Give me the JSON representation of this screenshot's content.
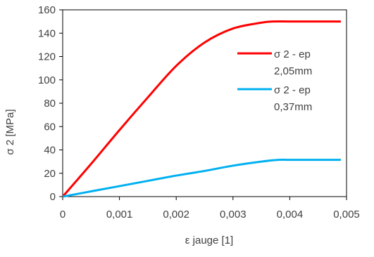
{
  "chart_data": {
    "type": "line",
    "title": "",
    "xlabel": "ε jauge [1]",
    "ylabel": "σ 2 [MPa]",
    "xlim": [
      0,
      0.005
    ],
    "ylim": [
      0,
      160
    ],
    "x_ticks": [
      0,
      0.001,
      0.002,
      0.003,
      0.004,
      0.005
    ],
    "x_tick_labels": [
      "0",
      "0,001",
      "0,002",
      "0,003",
      "0,004",
      "0,005"
    ],
    "y_ticks": [
      0,
      20,
      40,
      60,
      80,
      100,
      120,
      140,
      160
    ],
    "y_tick_labels": [
      "0",
      "20",
      "40",
      "60",
      "80",
      "100",
      "120",
      "140",
      "160"
    ],
    "grid": false,
    "legend_position": "right",
    "series": [
      {
        "name": "σ 2 - ep 2,05mm",
        "legend_lines": [
          "σ 2 - ep",
          "2,05mm"
        ],
        "color": "#ff0000",
        "x": [
          0,
          0.0005,
          0.001,
          0.0015,
          0.002,
          0.0025,
          0.003,
          0.0035,
          0.0037,
          0.004,
          0.0045,
          0.0049
        ],
        "y": [
          0,
          28,
          57,
          85,
          112,
          132,
          144,
          149,
          150,
          150,
          150,
          150
        ]
      },
      {
        "name": "σ 2 - ep 0,37mm",
        "legend_lines": [
          "σ 2 - ep",
          "0,37mm"
        ],
        "color": "#00b0f0",
        "x": [
          0,
          0.0005,
          0.001,
          0.0015,
          0.002,
          0.0025,
          0.003,
          0.0035,
          0.0038,
          0.004,
          0.0045,
          0.0049
        ],
        "y": [
          0,
          4.5,
          9,
          13.5,
          18,
          22,
          26.5,
          30,
          31.5,
          31.5,
          31.5,
          31.5
        ]
      }
    ]
  }
}
